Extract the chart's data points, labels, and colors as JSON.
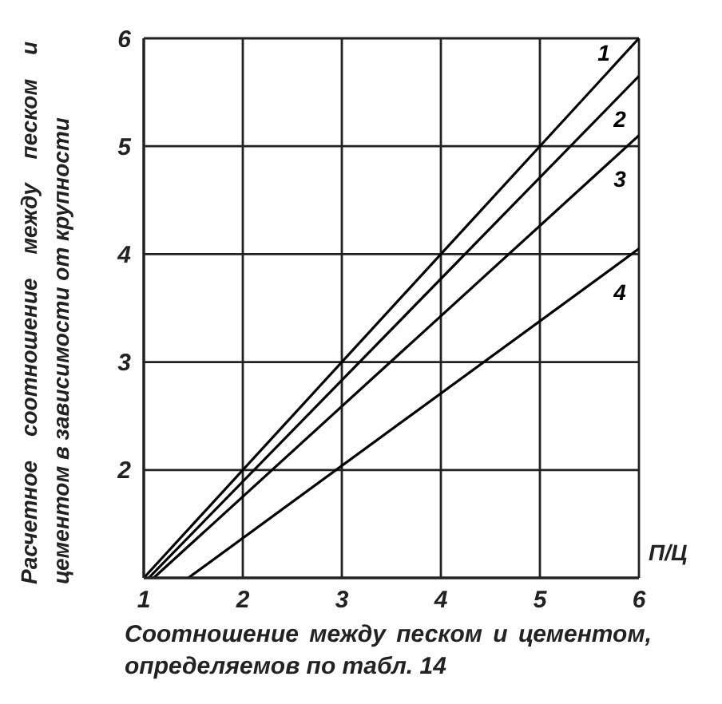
{
  "chart_data": {
    "type": "line",
    "xlabel": "Соотношение между песком и цементом, определяемов по табл. 14",
    "ylabel": "Расчетное соотношение между песком и цементом в зависимости от крупности",
    "annotations": [
      "П/Ц"
    ],
    "xlim": [
      1,
      6
    ],
    "xticks": [
      1,
      2,
      3,
      4,
      5,
      6
    ],
    "ylim": [
      1,
      6
    ],
    "yticks": [
      {
        "value": 1,
        "label": null
      },
      2,
      3,
      4,
      5,
      6
    ],
    "grid": true,
    "legend": false,
    "marker": "none",
    "line_style": "solid",
    "series": [
      {
        "name": "1",
        "color": "#000000",
        "x": [
          1,
          6
        ],
        "values": [
          1,
          6
        ]
      },
      {
        "name": "2",
        "color": "#000000",
        "x": [
          1.05,
          6
        ],
        "values": [
          1,
          5.65
        ]
      },
      {
        "name": "3",
        "color": "#000000",
        "x": [
          1.1,
          6
        ],
        "values": [
          1,
          5.1
        ]
      },
      {
        "name": "4",
        "color": "#000000",
        "x": [
          1.45,
          6
        ],
        "values": [
          1,
          4.05
        ]
      }
    ]
  }
}
